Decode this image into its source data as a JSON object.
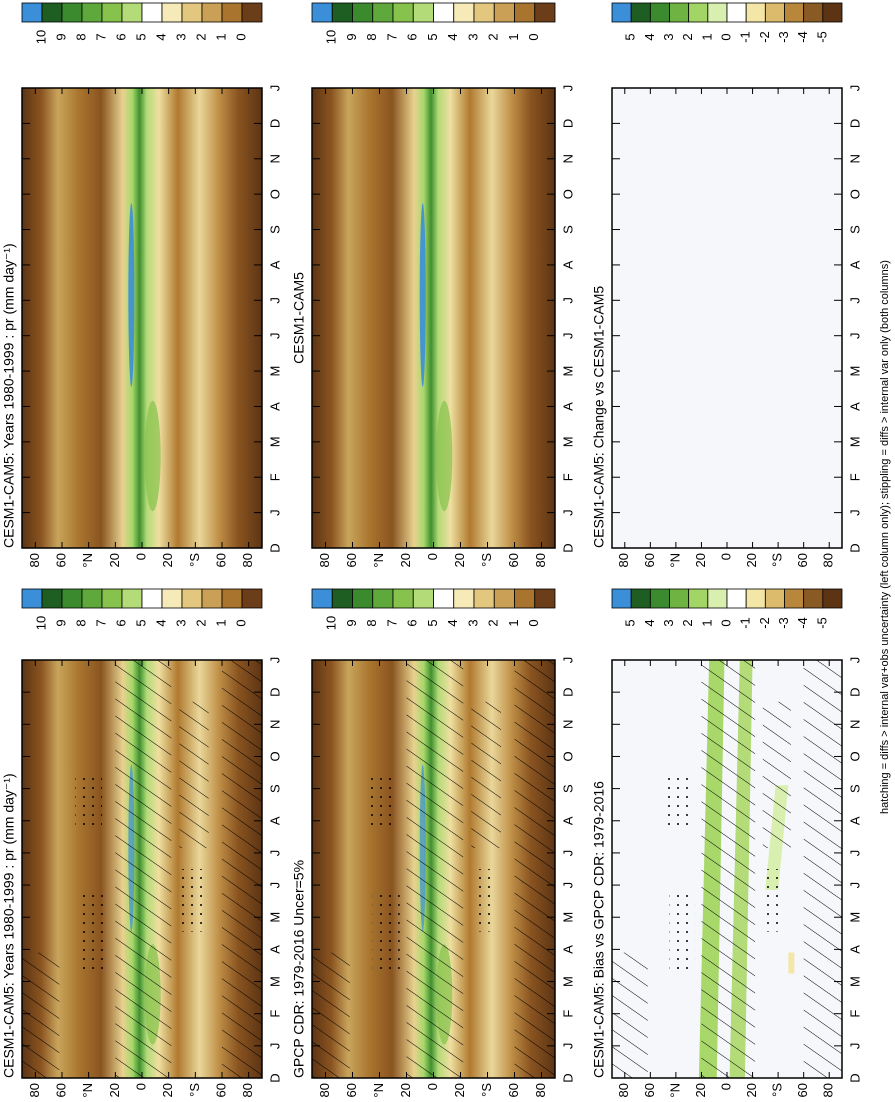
{
  "panels": [
    {
      "title": "CESM1-CAM5: Years 1980-1999 : pr (mm day⁻¹)",
      "hatching": true,
      "stippling": true,
      "colorbar": {
        "ticks": [
          10,
          9,
          8,
          7,
          6,
          5,
          4,
          3,
          2,
          1,
          0
        ],
        "colors": [
          "#3a8fd8",
          "#1f5e22",
          "#3b8a2e",
          "#5ea83c",
          "#86c24c",
          "#b3db78",
          "#ffffff",
          "#f6eab8",
          "#e3c77e",
          "#c9a055",
          "#a8742e",
          "#6b3d18"
        ]
      }
    },
    {
      "title": "CESM1-CAM5: Years 1980-1999 : pr (mm day⁻¹)",
      "hatching": false,
      "stippling": false,
      "colorbar": {
        "ticks": [
          10,
          9,
          8,
          7,
          6,
          5,
          4,
          3,
          2,
          1,
          0
        ],
        "colors": [
          "#3a8fd8",
          "#1f5e22",
          "#3b8a2e",
          "#5ea83c",
          "#86c24c",
          "#b3db78",
          "#ffffff",
          "#f6eab8",
          "#e3c77e",
          "#c9a055",
          "#a8742e",
          "#6b3d18"
        ]
      }
    },
    {
      "title": "GPCP CDR: 1979-2016 Uncer=5%",
      "hatching": true,
      "stippling": true,
      "colorbar": {
        "ticks": [
          10,
          9,
          8,
          7,
          6,
          5,
          4,
          3,
          2,
          1,
          0
        ],
        "colors": [
          "#3a8fd8",
          "#1f5e22",
          "#3b8a2e",
          "#5ea83c",
          "#86c24c",
          "#b3db78",
          "#ffffff",
          "#f6eab8",
          "#e3c77e",
          "#c9a055",
          "#a8742e",
          "#6b3d18"
        ]
      }
    },
    {
      "title": "CESM1-CAM5",
      "hatching": false,
      "stippling": false,
      "colorbar": {
        "ticks": [
          10,
          9,
          8,
          7,
          6,
          5,
          4,
          3,
          2,
          1,
          0
        ],
        "colors": [
          "#3a8fd8",
          "#1f5e22",
          "#3b8a2e",
          "#5ea83c",
          "#86c24c",
          "#b3db78",
          "#ffffff",
          "#f6eab8",
          "#e3c77e",
          "#c9a055",
          "#a8742e",
          "#6b3d18"
        ]
      }
    },
    {
      "title": "CESM1-CAM5: Bias vs GPCP CDR: 1979-2016",
      "hatching": true,
      "stippling": true,
      "colorbar": {
        "ticks": [
          5,
          4,
          3,
          2,
          1,
          0,
          -1,
          -2,
          -3,
          -4,
          -5
        ],
        "colors": [
          "#3a8fd8",
          "#1f5e22",
          "#3b8a2e",
          "#6fb443",
          "#a3d466",
          "#d9efb0",
          "#ffffff",
          "#f3e6a6",
          "#dcbc6c",
          "#b8873c",
          "#8a5a24",
          "#5c3414"
        ]
      }
    },
    {
      "title": "CESM1-CAM5: Change vs CESM1-CAM5",
      "hatching": false,
      "stippling": false,
      "colorbar": {
        "ticks": [
          5,
          4,
          3,
          2,
          1,
          0,
          -1,
          -2,
          -3,
          -4,
          -5
        ],
        "colors": [
          "#3a8fd8",
          "#1f5e22",
          "#3b8a2e",
          "#6fb443",
          "#a3d466",
          "#d9efb0",
          "#ffffff",
          "#f3e6a6",
          "#dcbc6c",
          "#b8873c",
          "#8a5a24",
          "#5c3414"
        ]
      }
    }
  ],
  "lat_axis": {
    "ylim": [
      -90,
      90
    ],
    "yticks": [
      80,
      60,
      {
        "value": 40,
        "label": "°N"
      },
      20,
      0,
      {
        "value": -20,
        "label": "20"
      },
      {
        "value": -40,
        "label": "°S"
      },
      {
        "value": -60,
        "label": "60"
      },
      {
        "value": -80,
        "label": "80"
      }
    ]
  },
  "month_labels": [
    "D",
    "J",
    "F",
    "M",
    "A",
    "M",
    "J",
    "J",
    "A",
    "S",
    "O",
    "N",
    "D",
    "J"
  ],
  "footnote": "hatching = diffs > internal var+obs uncertainty (left column only); stippling = diffs > internal var only (both columns)"
}
